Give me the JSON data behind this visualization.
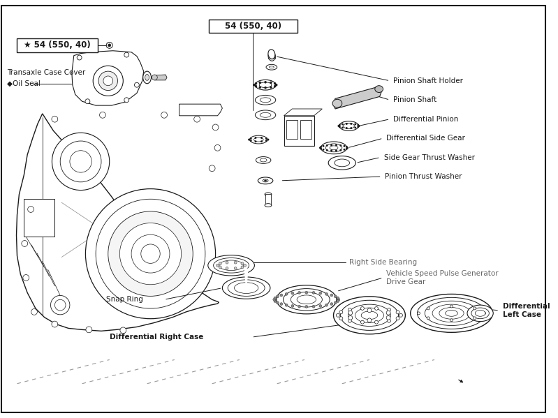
{
  "background_color": "#ffffff",
  "line_color": "#1a1a1a",
  "text_color": "#1a1a1a",
  "gray_text_color": "#666666",
  "labels": {
    "torque_54_top": "54 (550, 40)",
    "torque_54_left": "★ 54 (550, 40)",
    "transaxle_case_cover": "Transaxle Case Cover",
    "oil_seal": "◆Oil Seal",
    "pinion_shaft_holder": "Pinion Shaft Holder",
    "pinion_shaft": "Pinion Shaft",
    "differential_pinion": "Differential Pinion",
    "differential_side_gear": "Differential Side Gear",
    "side_gear_thrust_washer": "Side Gear Thrust Washer",
    "pinion_thrust_washer": "Pinion Thrust Washer",
    "right_side_bearing": "Right Side Bearing",
    "vehicle_speed": "Vehicle Speed Pulse Generator\nDrive Gear",
    "snap_ring": "Snap Ring",
    "differential_right_case": "Differential Right Case",
    "differential_left_case": "Differential\nLeft Case"
  }
}
